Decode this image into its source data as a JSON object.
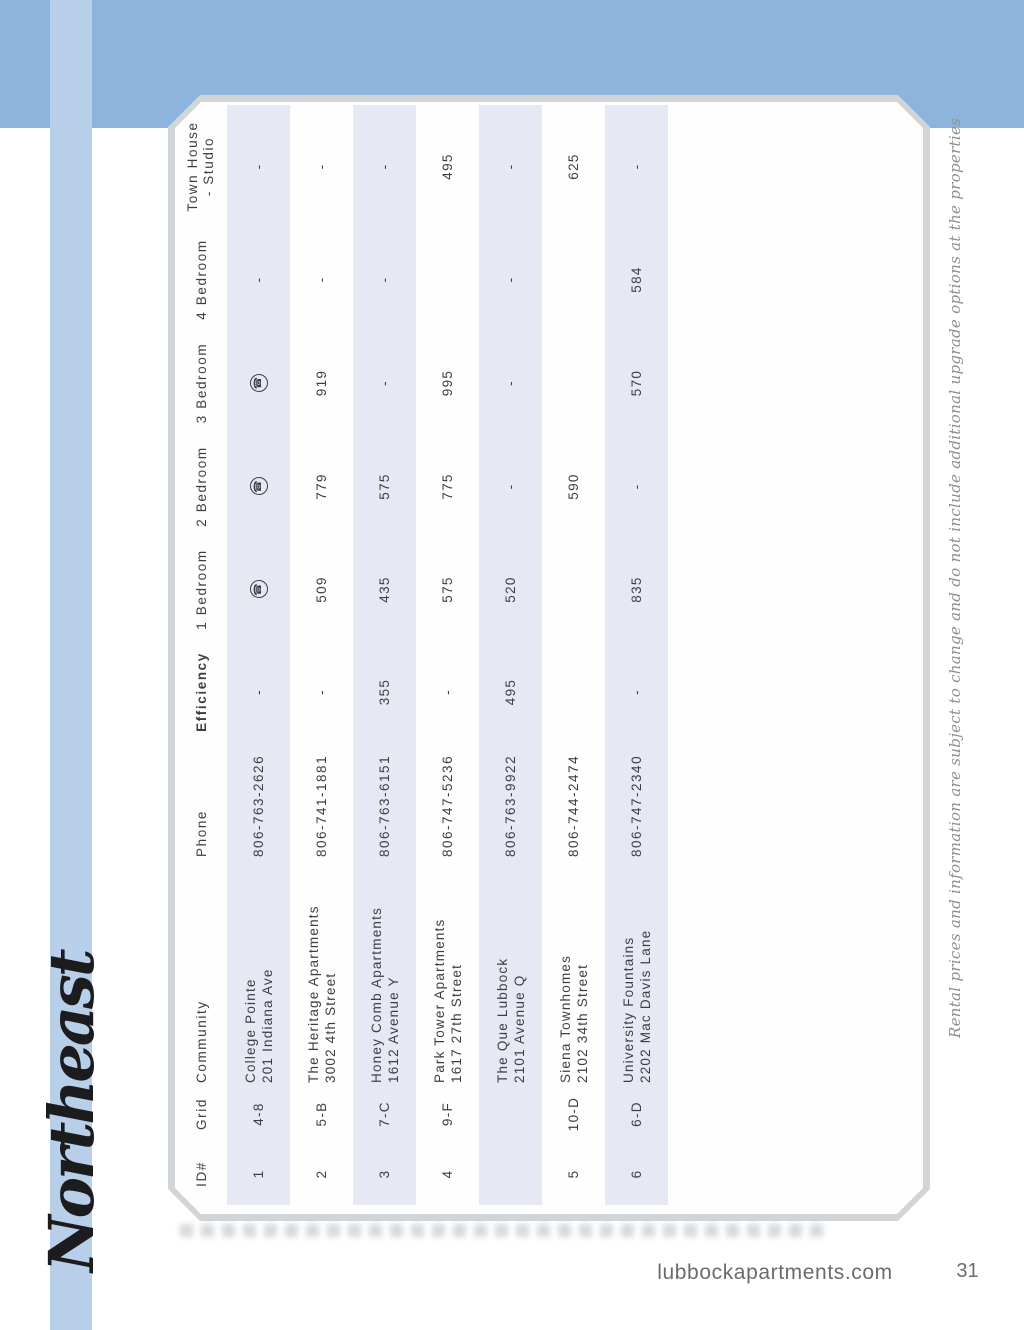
{
  "page": {
    "region_title": "Northeast",
    "footer_site": "lubbockapartments.com",
    "footer_page": "31",
    "disclaimer": "Rental prices and information are subject to change and do not include additional upgrade options at the properties",
    "call_icon_glyph": "☎"
  },
  "colors": {
    "top_band": "#8db4dd",
    "side_stripe": "#b8cfea",
    "row_shade": "#e6e9f4",
    "card_border": "#d2d5d7",
    "table_text": "#3b3e45"
  },
  "table": {
    "headers": {
      "id": "ID#",
      "grid": "Grid",
      "community": "Community",
      "phone": "Phone",
      "efficiency": "Efficiency",
      "br1": "1 Bedroom",
      "br2": "2 Bedroom",
      "br3": "3 Bedroom",
      "br4": "4 Bedroom",
      "th_line1": "Town House",
      "th_line2": "- Studio"
    },
    "rows": [
      {
        "id": "1",
        "grid": "4-8",
        "name": "College Pointe",
        "address": "201 Indiana Ave",
        "phone": "806-763-2626",
        "eff": "-",
        "br1": "call",
        "br2": "call",
        "br3": "call",
        "br4": "-",
        "th": "-"
      },
      {
        "id": "2",
        "grid": "5-B",
        "name": "The Heritage Apartments",
        "address": "3002 4th Street",
        "phone": "806-741-1881",
        "eff": "-",
        "br1": "509",
        "br2": "779",
        "br3": "919",
        "br4": "-",
        "th": "-"
      },
      {
        "id": "3",
        "grid": "7-C",
        "name": "Honey Comb Apartments",
        "address": "1612 Avenue Y",
        "phone": "806-763-6151",
        "eff": "355",
        "br1": "435",
        "br2": "575",
        "br3": "-",
        "br4": "-",
        "th": "-"
      },
      {
        "id": "4",
        "grid": "9-F",
        "name": "Park Tower Apartments",
        "address": "1617 27th Street",
        "phone": "806-747-5236",
        "eff": "-",
        "br1": "575",
        "br2": "775",
        "br3": "995",
        "br4": "",
        "th": "495"
      },
      {
        "id": "",
        "grid": "",
        "name": "The Que Lubbock",
        "address": "2101 Avenue Q",
        "phone": "806-763-9922",
        "eff": "495",
        "br1": "520",
        "br2": "-",
        "br3": "-",
        "br4": "-",
        "th": "-"
      },
      {
        "id": "5",
        "grid": "10-D",
        "name": "Siena Townhomes",
        "address": "2102 34th Street",
        "phone": "806-744-2474",
        "eff": "",
        "br1": "",
        "br2": "590",
        "br3": "",
        "br4": "",
        "th": "625"
      },
      {
        "id": "6",
        "grid": "6-D",
        "name": "University Fountains",
        "address": "2202 Mac Davis Lane",
        "phone": "806-747-2340",
        "eff": "-",
        "br1": "835",
        "br2": "-",
        "br3": "570",
        "br4": "584",
        "th": "-"
      }
    ]
  }
}
